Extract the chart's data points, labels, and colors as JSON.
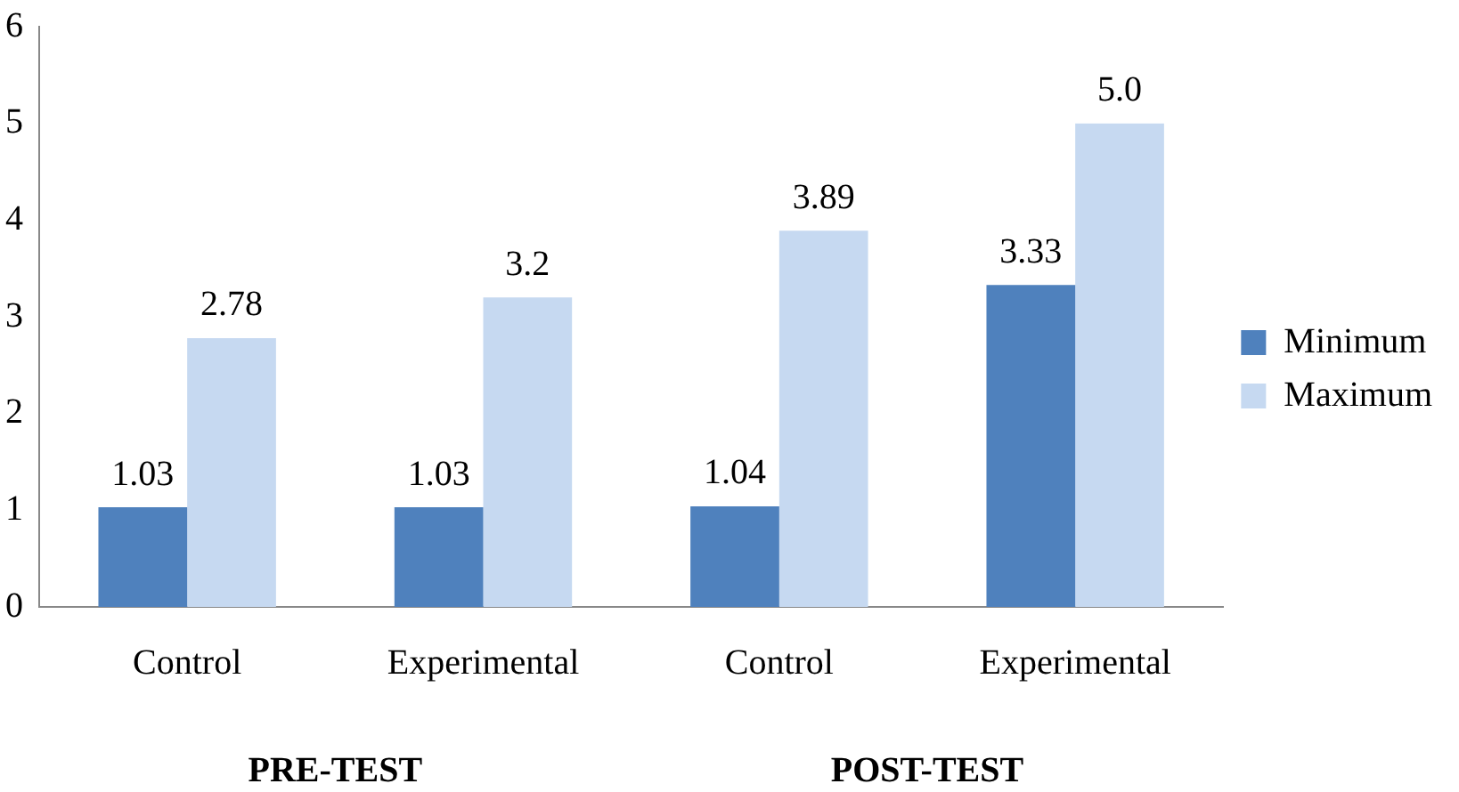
{
  "chart_data": {
    "type": "bar",
    "categories": [
      "Control",
      "Experimental",
      "Control",
      "Experimental"
    ],
    "series": [
      {
        "name": "Minimum",
        "color": "#4f81bd",
        "values": [
          1.03,
          1.03,
          1.04,
          3.33
        ],
        "value_labels": [
          "1.03",
          "1.03",
          "1.04",
          "3.33"
        ]
      },
      {
        "name": "Maximum",
        "color": "#c6d9f1",
        "values": [
          2.78,
          3.2,
          3.89,
          5.0
        ],
        "value_labels": [
          "2.78",
          "3.2",
          "3.89",
          "5.0"
        ]
      }
    ],
    "annotations": [
      "PRE-TEST",
      "POST-TEST"
    ],
    "ylim": [
      0,
      6
    ],
    "yticks": [
      0,
      1,
      2,
      3,
      4,
      5,
      6
    ],
    "grid": false,
    "legend": "right"
  }
}
